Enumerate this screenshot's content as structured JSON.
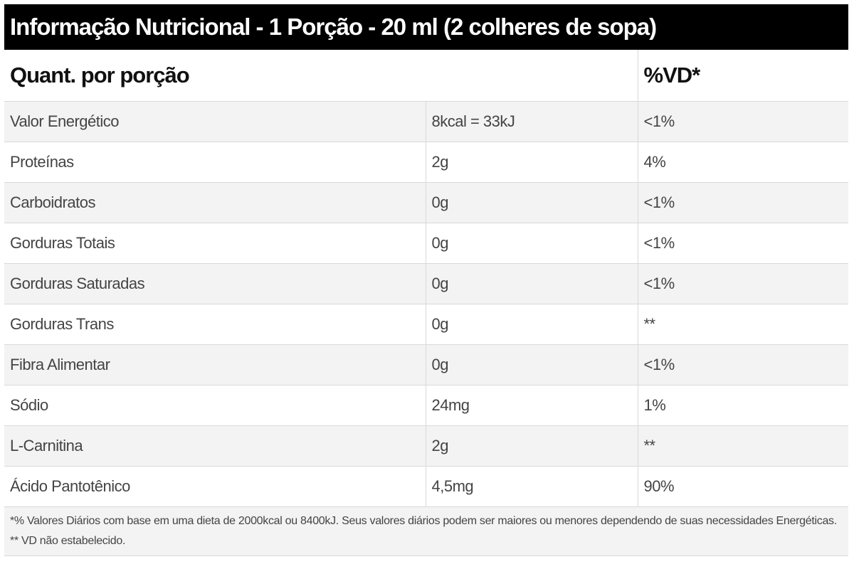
{
  "title": "Informação Nutricional - 1 Porção - 20 ml (2 colheres de sopa)",
  "header": {
    "col1": "Quant. por porção",
    "col2": "",
    "col3": "%VD*"
  },
  "rows": [
    {
      "name": "Valor Energético",
      "amount": "8kcal = 33kJ",
      "dv": "<1%"
    },
    {
      "name": "Proteínas",
      "amount": "2g",
      "dv": "4%"
    },
    {
      "name": "Carboidratos",
      "amount": "0g",
      "dv": "<1%"
    },
    {
      "name": "Gorduras Totais",
      "amount": "0g",
      "dv": "<1%"
    },
    {
      "name": "Gorduras Saturadas",
      "amount": "0g",
      "dv": "<1%"
    },
    {
      "name": "Gorduras Trans",
      "amount": "0g",
      "dv": "**"
    },
    {
      "name": "Fibra Alimentar",
      "amount": "0g",
      "dv": "<1%"
    },
    {
      "name": "Sódio",
      "amount": "24mg",
      "dv": "1%"
    },
    {
      "name": "L-Carnitina",
      "amount": "2g",
      "dv": "**"
    },
    {
      "name": "Ácido Pantotênico",
      "amount": "4,5mg",
      "dv": "90%"
    }
  ],
  "footnote": "*% Valores Diários com base em uma dieta de 2000kcal ou 8400kJ. Seus valores diários podem ser maiores ou menores dependendo de suas necessidades Energéticas. ** VD não estabelecido.",
  "colors": {
    "title_bg": "#000000",
    "title_text": "#ffffff",
    "stripe": "#f3f3f3",
    "border": "#d9d9d9"
  }
}
